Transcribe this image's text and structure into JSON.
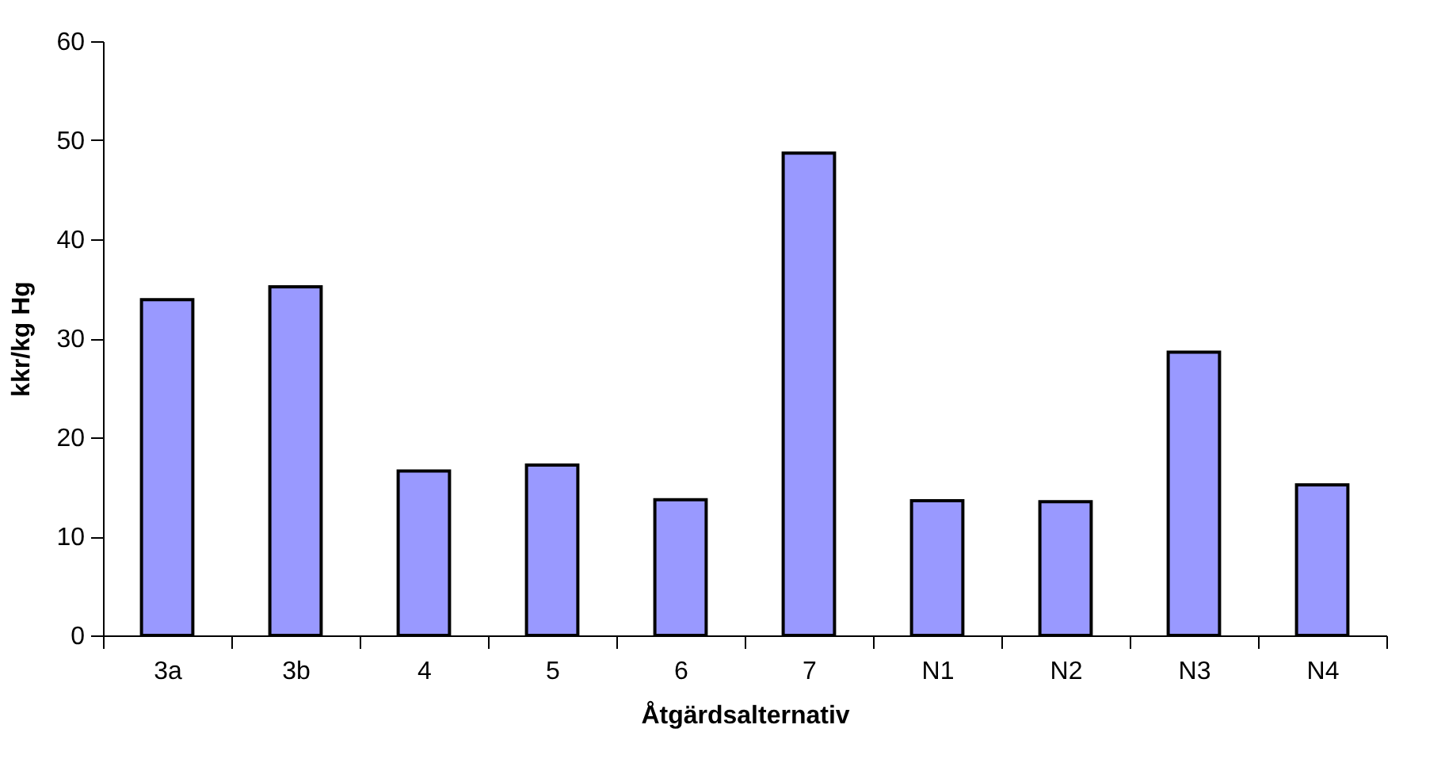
{
  "chart_data": {
    "type": "bar",
    "xlabel": "Åtgärdsalternativ",
    "ylabel": "kkr/kg Hg",
    "categories": [
      "3a",
      "3b",
      "4",
      "5",
      "6",
      "7",
      "N1",
      "N2",
      "N3",
      "N4"
    ],
    "values": [
      33.9,
      35.2,
      16.6,
      17.2,
      13.7,
      48.7,
      13.6,
      13.5,
      28.6,
      15.2
    ],
    "color": "#9999ff",
    "ylim": [
      0,
      60
    ],
    "yticks": [
      0,
      10,
      20,
      30,
      40,
      50,
      60
    ],
    "grid": false
  }
}
